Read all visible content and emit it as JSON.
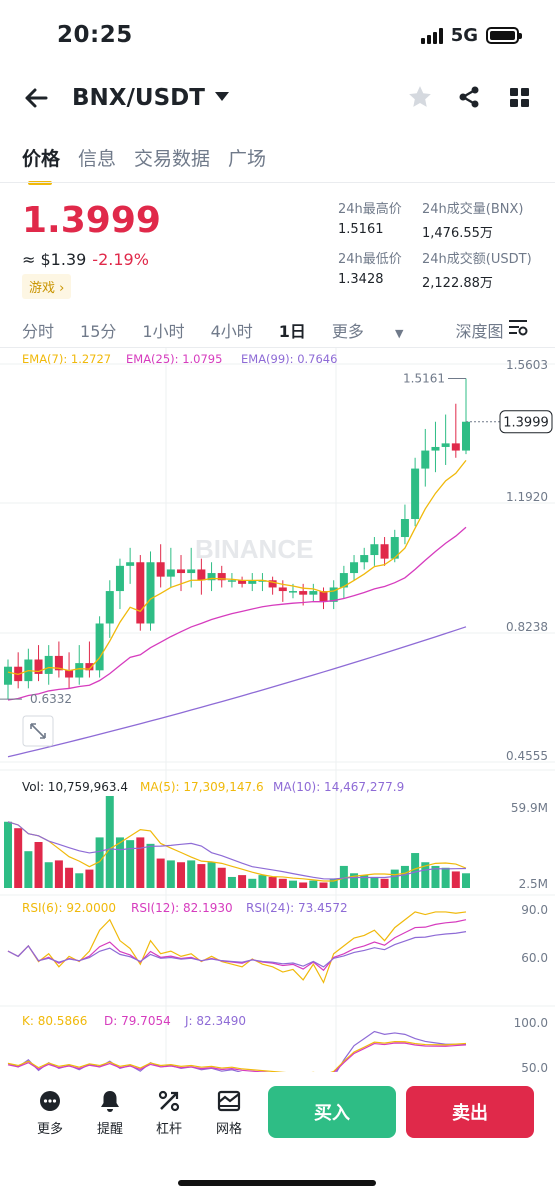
{
  "status": {
    "time": "20:25",
    "network": "5G"
  },
  "header": {
    "pair": "BNX/USDT",
    "icons": [
      "arrow-left-icon",
      "chevron-down-icon",
      "star-icon",
      "share-icon",
      "grid-icon"
    ]
  },
  "tabs": [
    {
      "label": "价格",
      "active": true
    },
    {
      "label": "信息"
    },
    {
      "label": "交易数据"
    },
    {
      "label": "广场"
    }
  ],
  "price": {
    "last": "1.3999",
    "usd": "≈ $1.39",
    "change": "-2.19%",
    "tag": "游戏 ›"
  },
  "stats": {
    "high_label": "24h最高价",
    "high": "1.5161",
    "low_label": "24h最低价",
    "low": "1.3428",
    "vol_base_label": "24h成交量(BNX)",
    "vol_base": "1,476.55万",
    "vol_quote_label": "24h成交额(USDT)",
    "vol_quote": "2,122.88万"
  },
  "intervals": [
    "分时",
    "15分",
    "1小时",
    "4小时",
    "1日",
    "更多",
    "深度图"
  ],
  "selected_interval": "1日",
  "ema": {
    "ema7": "EMA(7): 1.2727",
    "ema25": "EMA(25): 1.0795",
    "ema99": "EMA(99): 0.7646"
  },
  "watermark": "BINANCE",
  "colors": {
    "up": "#2ebd85",
    "down": "#e0294a",
    "ema7": "#f0b90b",
    "ema25": "#d63cbe",
    "ema99": "#8e6bd6",
    "accent": "#f0b90b"
  },
  "chart_data": {
    "type": "candlestick",
    "price_axis": [
      "1.5603",
      "1.1920",
      "0.8238",
      "0.4555"
    ],
    "y_range": [
      0.4555,
      1.5603
    ],
    "high_marker": "1.5161",
    "low_marker": "0.6332",
    "current_price": "1.3999",
    "candles": [
      [
        0.67,
        0.72,
        0.63,
        0.74
      ],
      [
        0.72,
        0.68,
        0.66,
        0.76
      ],
      [
        0.68,
        0.74,
        0.66,
        0.77
      ],
      [
        0.74,
        0.7,
        0.68,
        0.78
      ],
      [
        0.7,
        0.75,
        0.67,
        0.78
      ],
      [
        0.75,
        0.71,
        0.69,
        0.79
      ],
      [
        0.71,
        0.69,
        0.66,
        0.76
      ],
      [
        0.69,
        0.73,
        0.67,
        0.78
      ],
      [
        0.73,
        0.71,
        0.69,
        0.79
      ],
      [
        0.71,
        0.84,
        0.69,
        0.86
      ],
      [
        0.84,
        0.93,
        0.8,
        0.96
      ],
      [
        0.93,
        1.0,
        0.88,
        1.02
      ],
      [
        1.0,
        1.01,
        0.95,
        1.05
      ],
      [
        1.01,
        0.84,
        0.82,
        1.03
      ],
      [
        0.84,
        1.01,
        0.82,
        1.04
      ],
      [
        1.01,
        0.97,
        0.94,
        1.06
      ],
      [
        0.97,
        0.99,
        0.94,
        1.05
      ],
      [
        0.99,
        0.98,
        0.93,
        1.03
      ],
      [
        0.98,
        0.99,
        0.94,
        1.05
      ],
      [
        0.99,
        0.96,
        0.92,
        1.02
      ],
      [
        0.96,
        0.98,
        0.93,
        1.01
      ],
      [
        0.98,
        0.96,
        0.94,
        1.0
      ],
      [
        0.96,
        0.96,
        0.94,
        0.98
      ],
      [
        0.96,
        0.95,
        0.94,
        0.97
      ],
      [
        0.95,
        0.96,
        0.93,
        0.98
      ],
      [
        0.96,
        0.96,
        0.93,
        0.98
      ],
      [
        0.96,
        0.94,
        0.92,
        0.97
      ],
      [
        0.94,
        0.93,
        0.9,
        0.96
      ],
      [
        0.93,
        0.93,
        0.91,
        0.95
      ],
      [
        0.93,
        0.92,
        0.89,
        0.95
      ],
      [
        0.92,
        0.93,
        0.9,
        0.95
      ],
      [
        0.93,
        0.9,
        0.88,
        0.94
      ],
      [
        0.9,
        0.94,
        0.88,
        0.96
      ],
      [
        0.94,
        0.98,
        0.91,
        1.0
      ],
      [
        0.98,
        1.01,
        0.96,
        1.03
      ],
      [
        1.01,
        1.03,
        0.99,
        1.05
      ],
      [
        1.03,
        1.06,
        1.0,
        1.08
      ],
      [
        1.06,
        1.02,
        1.0,
        1.08
      ],
      [
        1.02,
        1.08,
        1.01,
        1.1
      ],
      [
        1.08,
        1.13,
        1.06,
        1.17
      ],
      [
        1.13,
        1.27,
        1.11,
        1.3
      ],
      [
        1.27,
        1.32,
        1.22,
        1.38
      ],
      [
        1.32,
        1.33,
        1.26,
        1.4
      ],
      [
        1.33,
        1.34,
        1.28,
        1.42
      ],
      [
        1.34,
        1.32,
        1.3,
        1.45
      ],
      [
        1.32,
        1.4,
        1.31,
        1.52
      ]
    ],
    "volume_axis": [
      "59.9M",
      "2.5M"
    ],
    "volume_legend": {
      "vol": "Vol: 10,759,963.4",
      "ma5": "MA(5): 17,309,147.6",
      "ma10": "MA(10): 14,467,277.9"
    },
    "rsi_axis": [
      "90.0",
      "60.0"
    ],
    "rsi_legend": {
      "rsi6": "RSI(6): 92.0000",
      "rsi12": "RSI(12): 82.1930",
      "rsi24": "RSI(24): 73.4572"
    },
    "kdj_axis": [
      "100.0",
      "50.0"
    ],
    "kdj_legend": {
      "k": "K: 80.5866",
      "d": "D: 79.7054",
      "j": "J: 82.3490"
    }
  },
  "bottom": {
    "more": "更多",
    "alert": "提醒",
    "leverage": "杠杆",
    "grid": "网格",
    "buy": "买入",
    "sell": "卖出"
  }
}
